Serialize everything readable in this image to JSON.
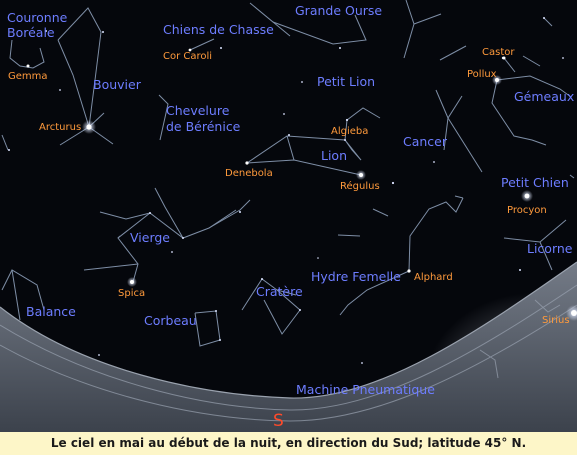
{
  "caption": "Le ciel en mai au début de la nuit, en direction du Sud; latitude 45° N.",
  "compass": "S",
  "constellations": {
    "couronne_boreale_1": "Couronne",
    "couronne_boreale_2": "Boréale",
    "chiens_de_chasse": "Chiens de Chasse",
    "grande_ourse": "Grande Ourse",
    "bouvier": "Bouvier",
    "petit_lion": "Petit Lion",
    "gemeaux": "Gémeaux",
    "chevelure_1": "Chevelure",
    "chevelure_2": "de Bérénice",
    "cancer": "Cancer",
    "lion": "Lion",
    "petit_chien": "Petit Chien",
    "vierge": "Vierge",
    "licorne": "Licorne",
    "hydre_femelle": "Hydre Femelle",
    "cratere": "Cratère",
    "balance": "Balance",
    "corbeau": "Corbeau",
    "machine_pneumatique": "Machine Pneumatique"
  },
  "stars": {
    "gemma": "Gemma",
    "cor_caroli": "Cor Caroli",
    "castor": "Castor",
    "pollux": "Pollux",
    "arcturus": "Arcturus",
    "algieba": "Algieba",
    "denebola": "Denebola",
    "regulus": "Régulus",
    "procyon": "Procyon",
    "alphard": "Alphard",
    "spica": "Spica",
    "sirius": "Sirius"
  },
  "colors": {
    "sky": "#05070c",
    "constellation_label": "#6d7dff",
    "star_label": "#ff9a3c",
    "constellation_line": "#7e8ea6",
    "horizon_ground": "#5b6270",
    "compass": "#ff4a2a",
    "caption_background": "#fdf6c8"
  }
}
